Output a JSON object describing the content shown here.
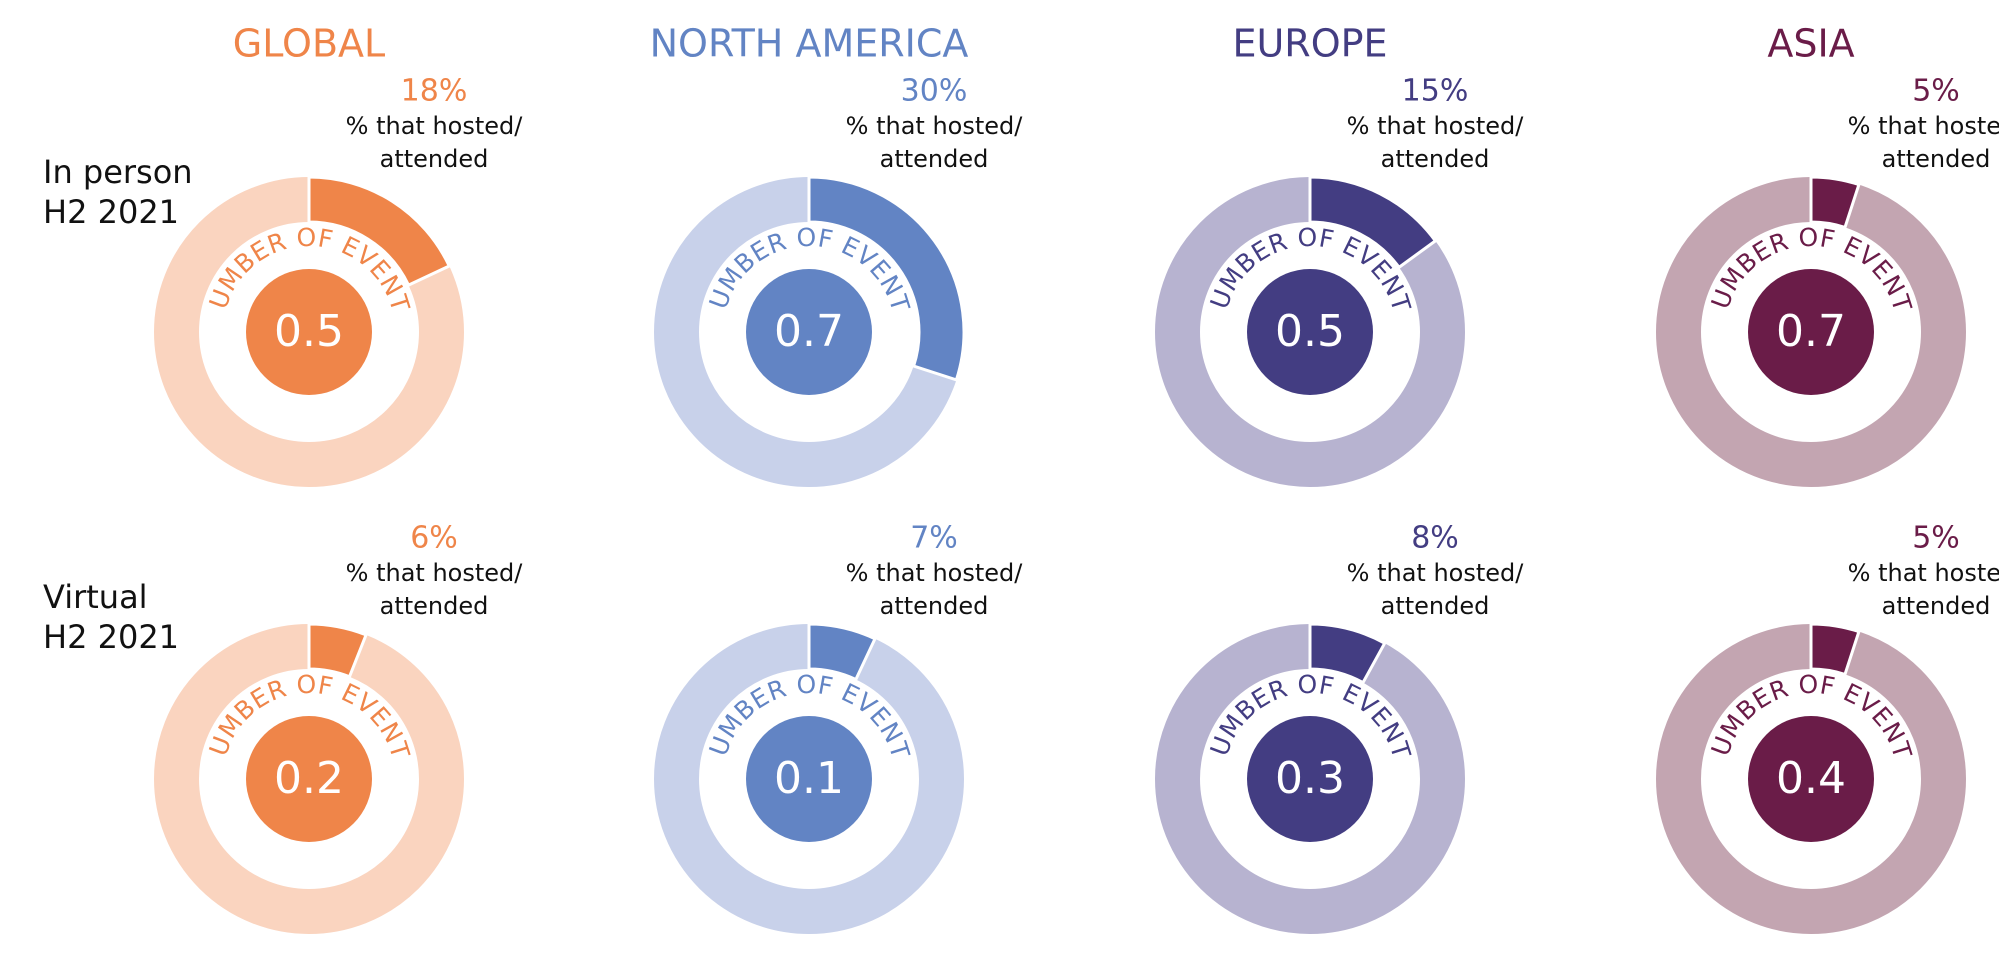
{
  "chart_data": {
    "type": "pie",
    "subtype": "donut-grid",
    "caption_line1": "% that hosted/",
    "caption_line2": "attended",
    "center_label": "NUMBER OF EVENTS",
    "regions": [
      {
        "name": "GLOBAL",
        "color": "#ef8549",
        "light": "#fad4bf"
      },
      {
        "name": "NORTH AMERICA",
        "color": "#6284c4",
        "light": "#c8d1ea"
      },
      {
        "name": "EUROPE",
        "color": "#433d82",
        "light": "#b7b3d0"
      },
      {
        "name": "ASIA",
        "color": "#6a1c48",
        "light": "#c3a5b1"
      }
    ],
    "rows": [
      {
        "label_line1": "In person",
        "label_line2": "H2 2021",
        "cells": [
          {
            "pct": 18,
            "pct_label": "18%",
            "events": "0.5"
          },
          {
            "pct": 30,
            "pct_label": "30%",
            "events": "0.7"
          },
          {
            "pct": 15,
            "pct_label": "15%",
            "events": "0.5"
          },
          {
            "pct": 5,
            "pct_label": "5%",
            "events": "0.7"
          }
        ]
      },
      {
        "label_line1": "Virtual",
        "label_line2": "H2 2021",
        "cells": [
          {
            "pct": 6,
            "pct_label": "6%",
            "events": "0.2"
          },
          {
            "pct": 7,
            "pct_label": "7%",
            "events": "0.1"
          },
          {
            "pct": 8,
            "pct_label": "8%",
            "events": "0.3"
          },
          {
            "pct": 5,
            "pct_label": "5%",
            "events": "0.4"
          }
        ]
      }
    ]
  }
}
